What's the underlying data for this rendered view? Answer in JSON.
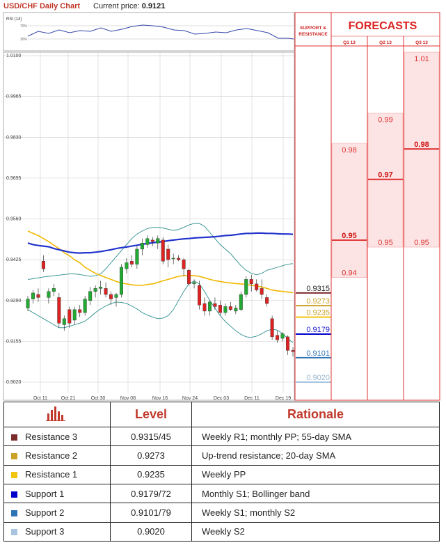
{
  "header": {
    "title": "USD/CHF Daily Chart",
    "price_label": "Current price:",
    "price_value": "0.9121"
  },
  "chart_data": {
    "type": "candlestick",
    "rsi": {
      "label": "RSI (14)",
      "levels": [
        "70%",
        "30%"
      ]
    },
    "y_axis": {
      "ticks": [
        "1.0100",
        "0.9965",
        "0.9830",
        "0.9695",
        "0.9560",
        "0.9425",
        "0.9290",
        "0.9155",
        "0.9020"
      ],
      "range": [
        0.9,
        1.01
      ]
    },
    "x_axis": {
      "ticks": [
        "Oct 11",
        "Oct 21",
        "Oct 30",
        "Nov 08",
        "Nov 16",
        "Nov 24",
        "Dec 03",
        "Dec 11",
        "Dec 19"
      ]
    },
    "candles": [
      [
        0.9265,
        0.9305,
        0.9255,
        0.9295
      ],
      [
        0.9295,
        0.9325,
        0.928,
        0.9315
      ],
      [
        0.931,
        0.933,
        0.9285,
        0.93
      ],
      [
        0.942,
        0.944,
        0.9385,
        0.9395
      ],
      [
        0.93,
        0.933,
        0.928,
        0.932
      ],
      [
        0.932,
        0.9345,
        0.9305,
        0.933
      ],
      [
        0.93,
        0.9315,
        0.92,
        0.9215
      ],
      [
        0.921,
        0.924,
        0.919,
        0.923
      ],
      [
        0.926,
        0.927,
        0.92,
        0.9215
      ],
      [
        0.9225,
        0.927,
        0.921,
        0.926
      ],
      [
        0.926,
        0.9275,
        0.9235,
        0.925
      ],
      [
        0.925,
        0.9305,
        0.924,
        0.9295
      ],
      [
        0.929,
        0.9335,
        0.9275,
        0.932
      ],
      [
        0.932,
        0.934,
        0.93,
        0.933
      ],
      [
        0.933,
        0.9355,
        0.931,
        0.9335
      ],
      [
        0.933,
        0.935,
        0.93,
        0.931
      ],
      [
        0.931,
        0.932,
        0.9275,
        0.9295
      ],
      [
        0.93,
        0.9315,
        0.927,
        0.931
      ],
      [
        0.931,
        0.941,
        0.93,
        0.94
      ],
      [
        0.9395,
        0.943,
        0.938,
        0.9415
      ],
      [
        0.942,
        0.944,
        0.94,
        0.941
      ],
      [
        0.941,
        0.947,
        0.9395,
        0.946
      ],
      [
        0.946,
        0.9495,
        0.944,
        0.948
      ],
      [
        0.9475,
        0.9505,
        0.9465,
        0.9495
      ],
      [
        0.949,
        0.95,
        0.947,
        0.9485
      ],
      [
        0.948,
        0.9505,
        0.946,
        0.9495
      ],
      [
        0.949,
        0.95,
        0.941,
        0.942
      ],
      [
        0.946,
        0.9475,
        0.94,
        0.9425
      ],
      [
        0.943,
        0.9445,
        0.941,
        0.943
      ],
      [
        0.943,
        0.944,
        0.942,
        0.9425
      ],
      [
        0.9425,
        0.943,
        0.937,
        0.9395
      ],
      [
        0.939,
        0.9395,
        0.934,
        0.9345
      ],
      [
        0.9345,
        0.936,
        0.933,
        0.935
      ],
      [
        0.934,
        0.9355,
        0.926,
        0.9275
      ],
      [
        0.928,
        0.93,
        0.924,
        0.9255
      ],
      [
        0.9255,
        0.929,
        0.924,
        0.9285
      ],
      [
        0.928,
        0.93,
        0.926,
        0.927
      ],
      [
        0.9275,
        0.929,
        0.924,
        0.925
      ],
      [
        0.925,
        0.928,
        0.924,
        0.927
      ],
      [
        0.927,
        0.9285,
        0.9255,
        0.926
      ],
      [
        0.9255,
        0.9275,
        0.9245,
        0.9265
      ],
      [
        0.926,
        0.932,
        0.9255,
        0.931
      ],
      [
        0.931,
        0.937,
        0.93,
        0.936
      ],
      [
        0.936,
        0.9375,
        0.932,
        0.9345
      ],
      [
        0.9345,
        0.936,
        0.932,
        0.9325
      ],
      [
        0.933,
        0.936,
        0.9295,
        0.931
      ],
      [
        0.93,
        0.931,
        0.927,
        0.928
      ],
      [
        0.923,
        0.924,
        0.916,
        0.917
      ],
      [
        0.9175,
        0.919,
        0.915,
        0.916
      ],
      [
        0.9165,
        0.9185,
        0.9155,
        0.918
      ],
      [
        0.917,
        0.9175,
        0.911,
        0.9125
      ],
      [
        0.9125,
        0.9135,
        0.9105,
        0.9121
      ]
    ],
    "sma_55": [
      0.948,
      0.9475,
      0.9472,
      0.947,
      0.9468,
      0.9462,
      0.9458,
      0.9454,
      0.945,
      0.9448,
      0.9447,
      0.9448,
      0.9448,
      0.945,
      0.9452,
      0.9455,
      0.9458,
      0.9462,
      0.9465,
      0.9467,
      0.947,
      0.9473,
      0.9476,
      0.9479,
      0.9481,
      0.9483,
      0.9485,
      0.9488,
      0.949,
      0.9492,
      0.9494,
      0.9495,
      0.9497,
      0.9498,
      0.9499,
      0.95,
      0.9501,
      0.9503,
      0.9505,
      0.9506,
      0.9508,
      0.951,
      0.9512,
      0.9512,
      0.9513,
      0.9513,
      0.9512,
      0.9512,
      0.9511,
      0.951,
      0.951,
      0.9509
    ],
    "sma_20": [
      0.952,
      0.9512,
      0.9505,
      0.9495,
      0.9485,
      0.9473,
      0.9462,
      0.9448,
      0.9438,
      0.9425,
      0.9415,
      0.94,
      0.939,
      0.938,
      0.9373,
      0.9366,
      0.936,
      0.9353,
      0.9348,
      0.9345,
      0.9342,
      0.934,
      0.934,
      0.9343,
      0.9345,
      0.935,
      0.9355,
      0.936,
      0.9365,
      0.937,
      0.9372,
      0.9373,
      0.9372,
      0.937,
      0.9365,
      0.936,
      0.9356,
      0.9353,
      0.935,
      0.9348,
      0.9346,
      0.9345,
      0.9343,
      0.934,
      0.9338,
      0.9335,
      0.933,
      0.9325,
      0.9322,
      0.932,
      0.9318,
      0.9316
    ],
    "bb_upper": [
      0.936,
      0.9362,
      0.9365,
      0.9368,
      0.937,
      0.9372,
      0.9374,
      0.9376,
      0.9378,
      0.9378,
      0.9376,
      0.9373,
      0.937,
      0.9372,
      0.9378,
      0.9395,
      0.9415,
      0.9435,
      0.9455,
      0.9475,
      0.9495,
      0.951,
      0.952,
      0.9528,
      0.9532,
      0.9532,
      0.953,
      0.9526,
      0.9522,
      0.9525,
      0.9532,
      0.954,
      0.9545,
      0.9545,
      0.9535,
      0.9515,
      0.9495,
      0.9475,
      0.946,
      0.9445,
      0.9425,
      0.9405,
      0.939,
      0.938,
      0.9375,
      0.938,
      0.939,
      0.9395,
      0.94,
      0.9405,
      0.941,
      0.9412
    ],
    "bb_lower": [
      0.926,
      0.925,
      0.924,
      0.923,
      0.922,
      0.921,
      0.92,
      0.92,
      0.9205,
      0.921,
      0.9215,
      0.9222,
      0.9235,
      0.925,
      0.9262,
      0.9272,
      0.928,
      0.9285,
      0.9284,
      0.928,
      0.9272,
      0.9262,
      0.925,
      0.9242,
      0.9235,
      0.923,
      0.9232,
      0.924,
      0.926,
      0.929,
      0.932,
      0.9345,
      0.9355,
      0.9345,
      0.932,
      0.929,
      0.9265,
      0.924,
      0.922,
      0.9205,
      0.919,
      0.9178,
      0.917,
      0.9168,
      0.9172,
      0.918,
      0.919,
      0.9195,
      0.9192,
      0.918,
      0.9165,
      0.915
    ],
    "level_markers": [
      {
        "value": 0.9315,
        "label": "0.9315",
        "color": "#7b2d2d"
      },
      {
        "value": 0.9273,
        "label": "0.9273",
        "color": "#c9a227"
      },
      {
        "value": 0.9235,
        "label": "0.9235",
        "color": "#f1c40f"
      },
      {
        "value": 0.9179,
        "label": "0.9179",
        "color": "#0000cc"
      },
      {
        "value": 0.9101,
        "label": "0.9101",
        "color": "#2e75b6"
      },
      {
        "value": 0.902,
        "label": "0.9020",
        "color": "#a8c4e0"
      }
    ]
  },
  "forecasts": {
    "sr_header": [
      "SUPPORT &",
      "RESISTANCE"
    ],
    "title": "FORECASTS",
    "columns": [
      "Q1 13",
      "Q2 13",
      "Q3 13"
    ],
    "boxes": [
      {
        "col": 0,
        "top_value": 0.98,
        "top_label": "0.98",
        "base_value": 0.95,
        "base_label": "0.95",
        "bottom_value": 0.94,
        "bottom_label": "0.94"
      },
      {
        "col": 1,
        "top_value": 0.99,
        "top_label": "0.99",
        "base_value": 0.97,
        "base_label": "0.97",
        "bottom_value": 0.95,
        "bottom_label": "0.95"
      },
      {
        "col": 2,
        "top_value": 1.01,
        "top_label": "1.01",
        "base_value": 0.98,
        "base_label": "0.98",
        "bottom_value": 0.95,
        "bottom_label": "0.95"
      }
    ]
  },
  "table": {
    "headers": {
      "level": "Level",
      "rationale": "Rationale"
    },
    "rows": [
      {
        "name": "Resistance 3",
        "level": "0.9315/45",
        "rationale": "Weekly R1; monthly PP; 55-day SMA",
        "color": "#7b2d2d"
      },
      {
        "name": "Resistance 2",
        "level": "0.9273",
        "rationale": "Up-trend resistance; 20-day SMA",
        "color": "#c9a227"
      },
      {
        "name": "Resistance 1",
        "level": "0.9235",
        "rationale": "Weekly PP",
        "color": "#f1c40f"
      },
      {
        "name": "Support 1",
        "level": "0.9179/72",
        "rationale": "Monthly S1; Bollinger band",
        "color": "#0000cc"
      },
      {
        "name": "Support 2",
        "level": "0.9101/79",
        "rationale": "Weekly S1; monthly S2",
        "color": "#2e75b6"
      },
      {
        "name": "Support 3",
        "level": "0.9020",
        "rationale": "Weekly S2",
        "color": "#a8c4e0"
      }
    ]
  }
}
